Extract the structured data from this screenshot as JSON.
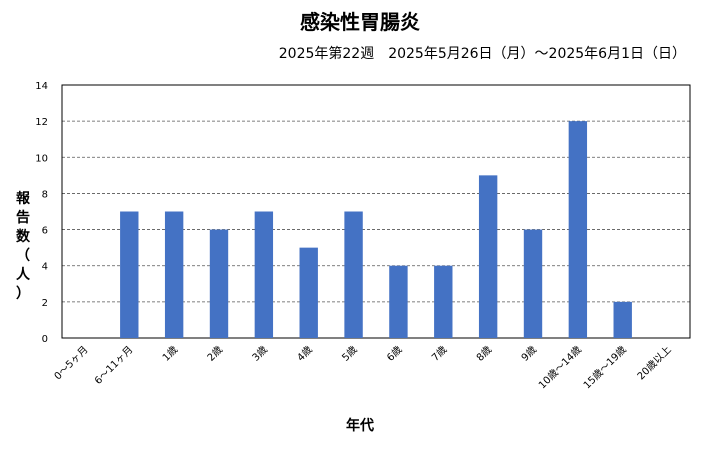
{
  "chart_data": {
    "type": "bar",
    "title": "感染性胃腸炎",
    "subtitle": "2025年第22週　2025年5月26日（月）～2025年6月1日（日）",
    "ylabel": "報告数（人）",
    "xlabel": "年代",
    "ylim": [
      0,
      14
    ],
    "yticks": [
      "0",
      "2",
      "4",
      "6",
      "8",
      "10",
      "12",
      "14"
    ],
    "grid": true,
    "bar_color": "#4472c4",
    "categories": [
      "0～5ヶ月",
      "6～11ヶ月",
      "1歳",
      "2歳",
      "3歳",
      "4歳",
      "5歳",
      "6歳",
      "7歳",
      "8歳",
      "9歳",
      "10歳～14歳",
      "15歳～19歳",
      "20歳以上"
    ],
    "values": [
      0,
      7,
      7,
      6,
      7,
      5,
      7,
      4,
      4,
      9,
      6,
      12,
      2,
      0
    ]
  }
}
